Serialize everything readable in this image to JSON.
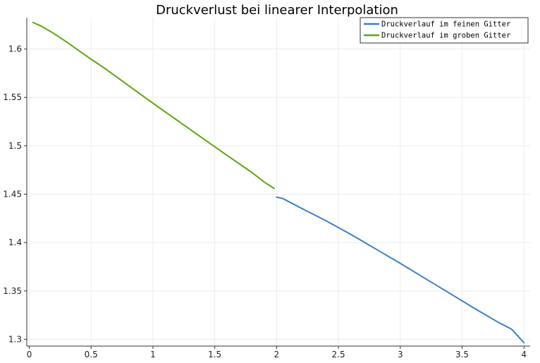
{
  "chart_data": {
    "type": "line",
    "title": "Druckverlust bei linearer Interpolation",
    "xlabel": "",
    "ylabel": "",
    "xlim": [
      -0.02,
      4.05
    ],
    "ylim": [
      1.293,
      1.6325
    ],
    "x_ticks": [
      0,
      0.5,
      1,
      1.5,
      2,
      2.5,
      3,
      3.5,
      4
    ],
    "x_tick_labels": [
      "0",
      "0.5",
      "1",
      "1.5",
      "2",
      "2.5",
      "3",
      "3.5",
      "4"
    ],
    "y_ticks": [
      1.3,
      1.35,
      1.4,
      1.45,
      1.5,
      1.55,
      1.6
    ],
    "y_tick_labels": [
      "1.3",
      "1.35",
      "1.4",
      "1.45",
      "1.5",
      "1.55",
      "1.6"
    ],
    "grid": true,
    "legend_position": "top-right",
    "series": [
      {
        "name": "Druckverlauf im feinen Gitter",
        "color": "#3b7fc4",
        "x": [
          2.0,
          2.05,
          2.2,
          2.4,
          2.6,
          2.8,
          3.0,
          3.2,
          3.4,
          3.6,
          3.8,
          3.9,
          4.0
        ],
        "y": [
          1.447,
          1.4455,
          1.4355,
          1.4225,
          1.4085,
          1.3935,
          1.3785,
          1.363,
          1.3475,
          1.332,
          1.317,
          1.3105,
          1.2965
        ]
      },
      {
        "name": "Druckverlauf im groben Gitter",
        "color": "#5aa70f",
        "x": [
          0.03,
          0.1,
          0.2,
          0.3,
          0.4,
          0.5,
          0.6,
          0.8,
          1.0,
          1.2,
          1.4,
          1.6,
          1.8,
          1.9,
          1.98
        ],
        "y": [
          1.6275,
          1.6235,
          1.616,
          1.6075,
          1.5985,
          1.5895,
          1.581,
          1.5625,
          1.544,
          1.526,
          1.508,
          1.49,
          1.4725,
          1.4625,
          1.456
        ]
      }
    ]
  }
}
